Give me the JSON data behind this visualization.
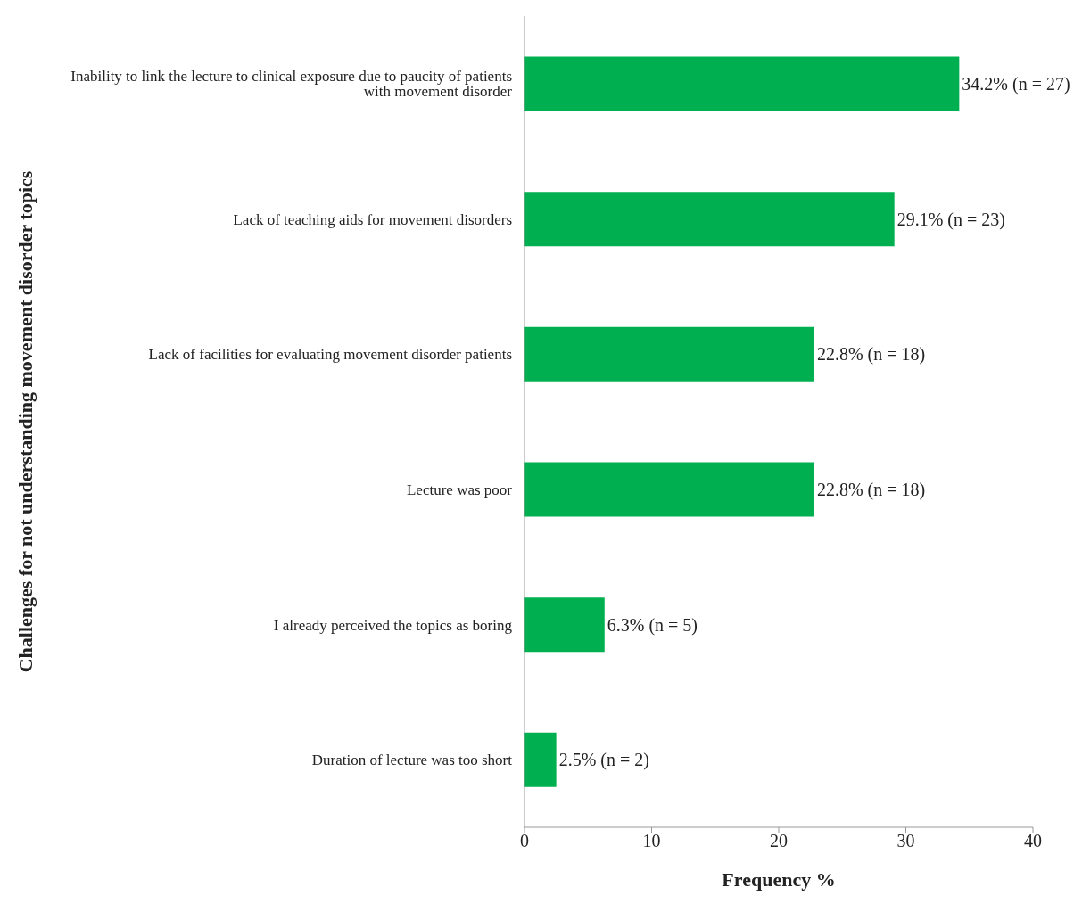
{
  "chart_data": {
    "type": "bar",
    "orientation": "horizontal",
    "xlabel": "Frequency %",
    "ylabel": "Challenges for not understanding movement disorder topics",
    "categories": [
      "Inability to link the lecture to clinical exposure due to paucity of patients with movement disorder",
      "Lack of teaching aids for movement disorders",
      "Lack of facilities for evaluating movement disorder patients",
      "Lecture was poor",
      "I already perceived the topics as boring",
      "Duration of lecture was too short"
    ],
    "values": [
      34.2,
      29.1,
      22.8,
      22.8,
      6.3,
      2.5
    ],
    "value_labels": [
      "34.2% (n = 27)",
      "29.1% (n = 23)",
      "22.8% (n = 18)",
      "22.8% (n = 18)",
      "6.3% (n = 5)",
      "2.5% (n = 2)"
    ],
    "color": "#00b050",
    "xlim": [
      0,
      40
    ],
    "xticks": [
      0,
      10,
      20,
      30,
      40
    ]
  }
}
